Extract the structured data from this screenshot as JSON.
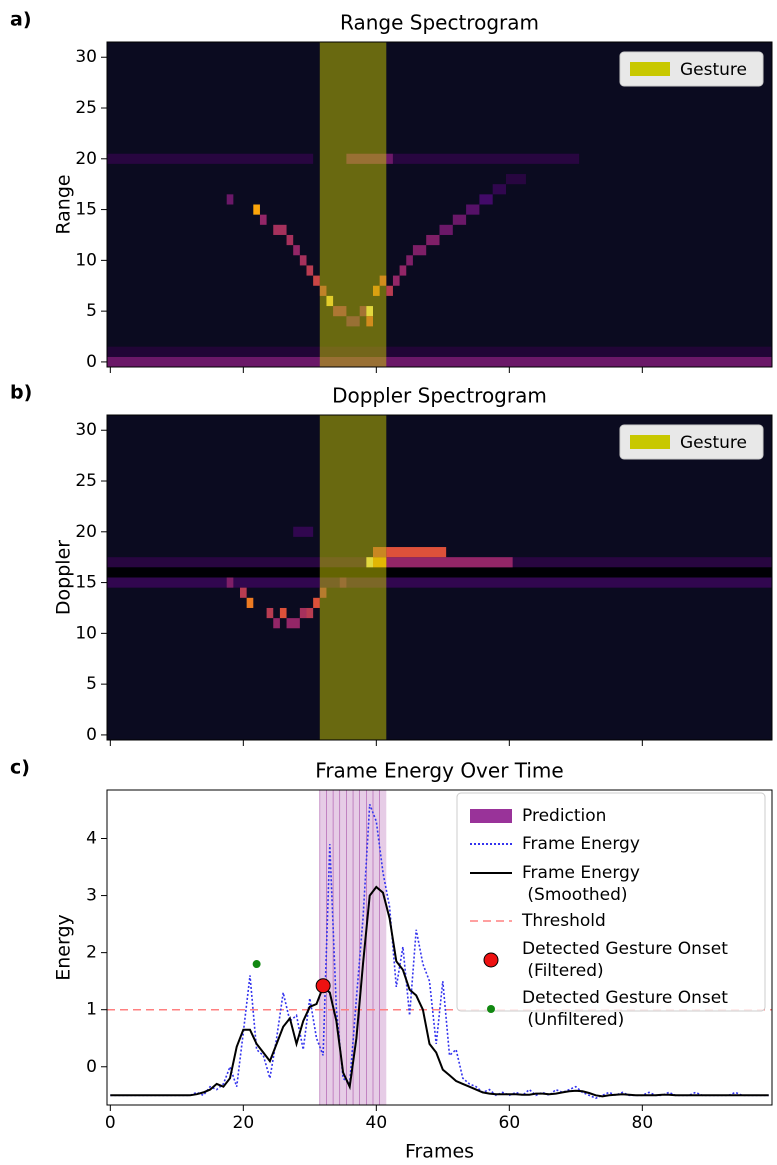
{
  "chart_data": [
    {
      "type": "heatmap",
      "panel_label": "a)",
      "title": "Range Spectrogram",
      "ylabel": "Range",
      "xlim": [
        -0.5,
        99.5
      ],
      "ylim": [
        -0.5,
        31.5
      ],
      "xticks": [
        0,
        20,
        40,
        60,
        80
      ],
      "show_xtick_labels": false,
      "yticks": [
        0,
        5,
        10,
        15,
        20,
        25,
        30
      ],
      "colormap": "inferno",
      "background": "#0b0b20",
      "runs": [
        [
          0,
          99,
          0,
          0.3
        ],
        [
          0,
          99,
          1,
          0.1
        ],
        [
          0,
          30,
          20,
          0.12
        ],
        [
          36,
          42,
          20,
          0.3
        ],
        [
          43,
          70,
          20,
          0.12
        ],
        [
          18,
          18,
          16,
          0.3
        ],
        [
          22,
          22,
          15,
          0.8
        ],
        [
          23,
          23,
          14,
          0.4
        ],
        [
          25,
          26,
          13,
          0.45
        ],
        [
          27,
          27,
          12,
          0.45
        ],
        [
          28,
          28,
          11,
          0.4
        ],
        [
          29,
          29,
          10,
          0.45
        ],
        [
          30,
          30,
          9,
          0.5
        ],
        [
          31,
          31,
          8,
          0.55
        ],
        [
          32,
          32,
          7,
          0.5
        ],
        [
          33,
          33,
          6,
          0.9
        ],
        [
          34,
          35,
          5,
          0.4
        ],
        [
          36,
          37,
          4,
          0.3
        ],
        [
          38,
          38,
          5,
          0.35
        ],
        [
          39,
          39,
          5,
          0.95
        ],
        [
          39,
          39,
          4,
          0.6
        ],
        [
          40,
          40,
          7,
          0.7
        ],
        [
          41,
          41,
          8,
          0.6
        ],
        [
          42,
          42,
          7,
          0.5
        ],
        [
          43,
          43,
          8,
          0.4
        ],
        [
          44,
          44,
          9,
          0.4
        ],
        [
          45,
          45,
          10,
          0.35
        ],
        [
          46,
          47,
          11,
          0.35
        ],
        [
          48,
          49,
          12,
          0.35
        ],
        [
          50,
          51,
          13,
          0.3
        ],
        [
          52,
          53,
          14,
          0.3
        ],
        [
          54,
          55,
          15,
          0.25
        ],
        [
          56,
          57,
          16,
          0.2
        ],
        [
          58,
          59,
          17,
          0.15
        ],
        [
          60,
          62,
          18,
          0.12
        ]
      ],
      "span": {
        "name": "Gesture",
        "range": [
          31.5,
          41.5
        ],
        "color": "#c8c800"
      },
      "legend": "upper right"
    },
    {
      "type": "heatmap",
      "panel_label": "b)",
      "title": "Doppler Spectrogram",
      "ylabel": "Doppler",
      "xlim": [
        -0.5,
        99.5
      ],
      "ylim": [
        -0.5,
        31.5
      ],
      "xticks": [
        0,
        20,
        40,
        60,
        80
      ],
      "show_xtick_labels": false,
      "yticks": [
        0,
        5,
        10,
        15,
        20,
        25,
        30
      ],
      "colormap": "inferno",
      "background": "#0b0b20",
      "runs": [
        [
          0,
          99,
          15,
          0.15
        ],
        [
          0,
          99,
          17,
          0.12
        ],
        [
          0,
          99,
          16,
          0
        ],
        [
          42,
          60,
          17,
          0.4
        ],
        [
          39,
          39,
          17,
          0.95
        ],
        [
          40,
          41,
          17,
          0.8
        ],
        [
          42,
          50,
          18,
          0.6
        ],
        [
          40,
          41,
          18,
          0.55
        ],
        [
          18,
          18,
          15,
          0.35
        ],
        [
          20,
          20,
          14,
          0.5
        ],
        [
          21,
          21,
          13,
          0.7
        ],
        [
          24,
          24,
          12,
          0.5
        ],
        [
          25,
          25,
          11,
          0.4
        ],
        [
          26,
          26,
          12,
          0.6
        ],
        [
          27,
          28,
          11,
          0.4
        ],
        [
          29,
          29,
          12,
          0.45
        ],
        [
          30,
          30,
          12,
          0.5
        ],
        [
          31,
          31,
          13,
          0.6
        ],
        [
          32,
          32,
          14,
          0.45
        ],
        [
          35,
          35,
          15,
          0.3
        ],
        [
          28,
          30,
          20,
          0.15
        ]
      ],
      "span": {
        "name": "Gesture",
        "range": [
          31.5,
          41.5
        ],
        "color": "#c8c800"
      },
      "legend": "upper right"
    },
    {
      "type": "line",
      "panel_label": "c)",
      "title": "Frame Energy Over Time",
      "xlabel": "Frames",
      "ylabel": "Energy",
      "xlim": [
        -0.5,
        99.5
      ],
      "ylim": [
        -0.67,
        4.85
      ],
      "xticks": [
        0,
        20,
        40,
        60,
        80
      ],
      "yticks": [
        0,
        1,
        2,
        3,
        4
      ],
      "x": [
        0,
        1,
        2,
        3,
        4,
        5,
        6,
        7,
        8,
        9,
        10,
        11,
        12,
        13,
        14,
        15,
        16,
        17,
        18,
        19,
        20,
        21,
        22,
        23,
        24,
        25,
        26,
        27,
        28,
        29,
        30,
        31,
        32,
        33,
        34,
        35,
        36,
        37,
        38,
        39,
        40,
        41,
        42,
        43,
        44,
        45,
        46,
        47,
        48,
        49,
        50,
        51,
        52,
        53,
        54,
        55,
        56,
        57,
        58,
        59,
        60,
        61,
        62,
        63,
        64,
        65,
        66,
        67,
        68,
        69,
        70,
        71,
        72,
        73,
        74,
        75,
        76,
        77,
        78,
        79,
        80,
        81,
        82,
        83,
        84,
        85,
        86,
        87,
        88,
        89,
        90,
        91,
        92,
        93,
        94,
        95,
        96,
        97,
        98,
        99
      ],
      "prediction": {
        "name": "Prediction",
        "span": [
          31.5,
          41.5
        ],
        "color": "#800080"
      },
      "series": [
        {
          "name": "Frame Energy",
          "color": "#3333ee",
          "style": "dotted",
          "values": [
            -0.5,
            -0.5,
            -0.5,
            -0.5,
            -0.5,
            -0.5,
            -0.5,
            -0.5,
            -0.5,
            -0.5,
            -0.5,
            -0.5,
            -0.5,
            -0.45,
            -0.5,
            -0.35,
            -0.4,
            -0.3,
            0.0,
            -0.35,
            0.6,
            1.6,
            0.3,
            0.2,
            -0.2,
            0.5,
            1.3,
            0.8,
            0.9,
            0.3,
            1.2,
            0.5,
            0.2,
            3.9,
            1.0,
            -0.2,
            -0.3,
            1.2,
            2.6,
            4.6,
            4.3,
            3.4,
            2.8,
            1.4,
            2.1,
            0.9,
            2.4,
            1.8,
            1.5,
            0.4,
            1.5,
            0.2,
            0.3,
            -0.2,
            -0.3,
            -0.35,
            -0.45,
            -0.4,
            -0.5,
            -0.45,
            -0.5,
            -0.45,
            -0.5,
            -0.4,
            -0.5,
            -0.45,
            -0.5,
            -0.4,
            -0.45,
            -0.4,
            -0.35,
            -0.45,
            -0.5,
            -0.55,
            -0.5,
            -0.45,
            -0.5,
            -0.45,
            -0.5,
            -0.5,
            -0.5,
            -0.45,
            -0.5,
            -0.5,
            -0.45,
            -0.5,
            -0.5,
            -0.5,
            -0.45,
            -0.5,
            -0.5,
            -0.5,
            -0.5,
            -0.5,
            -0.45,
            -0.5,
            -0.5,
            -0.5,
            -0.5,
            -0.5
          ]
        },
        {
          "name": "Frame Energy\n (Smoothed)",
          "color": "#000000",
          "style": "solid",
          "values": [
            -0.5,
            -0.5,
            -0.5,
            -0.5,
            -0.5,
            -0.5,
            -0.5,
            -0.5,
            -0.5,
            -0.5,
            -0.5,
            -0.5,
            -0.5,
            -0.48,
            -0.45,
            -0.4,
            -0.3,
            -0.35,
            -0.2,
            0.35,
            0.65,
            0.65,
            0.4,
            0.25,
            0.1,
            0.4,
            0.7,
            0.85,
            0.4,
            0.8,
            1.05,
            1.1,
            1.4,
            1.3,
            0.8,
            -0.1,
            -0.35,
            0.5,
            1.8,
            3.0,
            3.15,
            3.05,
            2.6,
            1.85,
            1.7,
            1.35,
            1.25,
            1.0,
            0.4,
            0.25,
            -0.05,
            -0.15,
            -0.25,
            -0.3,
            -0.35,
            -0.4,
            -0.45,
            -0.47,
            -0.48,
            -0.48,
            -0.48,
            -0.48,
            -0.49,
            -0.49,
            -0.47,
            -0.47,
            -0.48,
            -0.47,
            -0.45,
            -0.43,
            -0.42,
            -0.43,
            -0.46,
            -0.5,
            -0.52,
            -0.5,
            -0.49,
            -0.48,
            -0.49,
            -0.5,
            -0.5,
            -0.5,
            -0.5,
            -0.49,
            -0.49,
            -0.5,
            -0.5,
            -0.5,
            -0.5,
            -0.5,
            -0.5,
            -0.5,
            -0.5,
            -0.5,
            -0.5,
            -0.5,
            -0.5,
            -0.5,
            -0.5,
            -0.5
          ]
        }
      ],
      "threshold": {
        "name": "Threshold",
        "value": 1,
        "color": "#ff8080"
      },
      "onsets": [
        {
          "name": "Detected Gesture Onset\n (Filtered)",
          "x": 32,
          "y": 1.42,
          "color": "#ee1111",
          "size": 7
        },
        {
          "name": "Detected Gesture Onset\n (Unfiltered)",
          "x": 22,
          "y": 1.8,
          "color": "#118811",
          "size": 4
        }
      ],
      "legend": "upper right"
    }
  ]
}
